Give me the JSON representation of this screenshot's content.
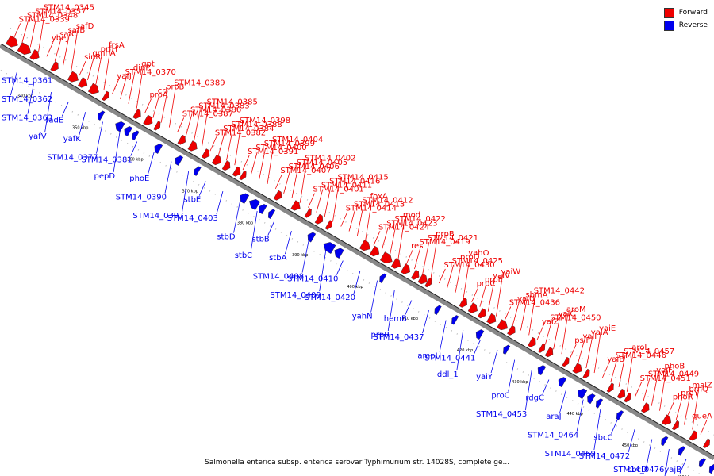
{
  "legend": [
    {
      "label": "Forward",
      "color": "#ee0000"
    },
    {
      "label": "Reverse",
      "color": "#0000ee"
    }
  ],
  "colors": {
    "forward": "#ee0000",
    "reverse": "#0000ee",
    "backbone": "#888888"
  },
  "footer": "Salmonella enterica subsp. enterica serovar Typhimurium str. 14028S, complete ge...",
  "tick_labels": [
    "340 kbp",
    "350 kbp",
    "360 kbp",
    "370 kbp",
    "380 kbp",
    "390 kbp",
    "400 kbp",
    "410 kbp",
    "420 kbp",
    "430 kbp",
    "440 kbp",
    "450 kbp",
    "460 kbp"
  ],
  "forward_labels": [
    "STM14_0339",
    "STM14_0348",
    "STM14_0357",
    "STM14_0345",
    "ybeJ",
    "safC",
    "safB",
    "safD",
    "sinR",
    "gmhA",
    "prfH",
    "frsA",
    "yafJ",
    "STM14_0370",
    "dinP",
    "gpt",
    "proA",
    "crl",
    "proB",
    "STM14_0389",
    "STM14_0387",
    "STM14_0386",
    "STM14_0383",
    "STM14_0385",
    "STM14_0382",
    "STM14_0384",
    "STM14_0388",
    "STM14_0398",
    "STM14_0391",
    "STM14_0400",
    "STM14_0399",
    "STM14_0404",
    "STM14_0407",
    "STM14_0406",
    "STM14_0405",
    "STM14_0402",
    "STM14_0401",
    "STM14_0411",
    "STM14_0416",
    "STM14_0415",
    "STM14_0414",
    "STM14_0413",
    "STM14_0412",
    "foxA",
    "STM14_0424",
    "STM14_0423",
    "STM14_0422",
    "mod",
    "res",
    "STM14_0419",
    "STM14_0421",
    "prpB",
    "STM14_0430",
    "STM14_0425",
    "prpD",
    "yahO",
    "prpC",
    "prpE",
    "yaiV",
    "yaiW",
    "STM14_0436",
    "yaiU",
    "sbmA",
    "STM14_0442",
    "yaiZ",
    "STM14_0450",
    "yaiC",
    "aroM",
    "psiF",
    "yaiI",
    "yaiA",
    "yaiE",
    "yaiB",
    "STM14_0446",
    "STM14_0457",
    "aroL",
    "STM14_0451",
    "STM14_0449",
    "yajF",
    "phoB",
    "phoR",
    "proY",
    "brnQ",
    "malZ",
    "queA"
  ],
  "reverse_labels": [
    "STM14_0361",
    "STM14_0362",
    "STM14_0363",
    "yafV",
    "fadE",
    "yafK",
    "STM14_0377",
    "pepD",
    "STM14_0381",
    "phoE",
    "STM14_0390",
    "STM14_0397",
    "stbE",
    "STM14_0403",
    "stbD",
    "stbC",
    "stbB",
    "stbA",
    "STM14_0408",
    "STM14_0409",
    "STM14_0410",
    "STM14_0420",
    "yahN",
    "prpR",
    "hemB",
    "STM14_0437",
    "ampH",
    "ddl_1",
    "STM14_0441",
    "yaiY",
    "proC",
    "STM14_0453",
    "rdgC",
    "araJ",
    "STM14_0464",
    "STM14_0469",
    "sbcC",
    "STM14_0472",
    "sbcD",
    "STM14_0476",
    "yajB"
  ]
}
